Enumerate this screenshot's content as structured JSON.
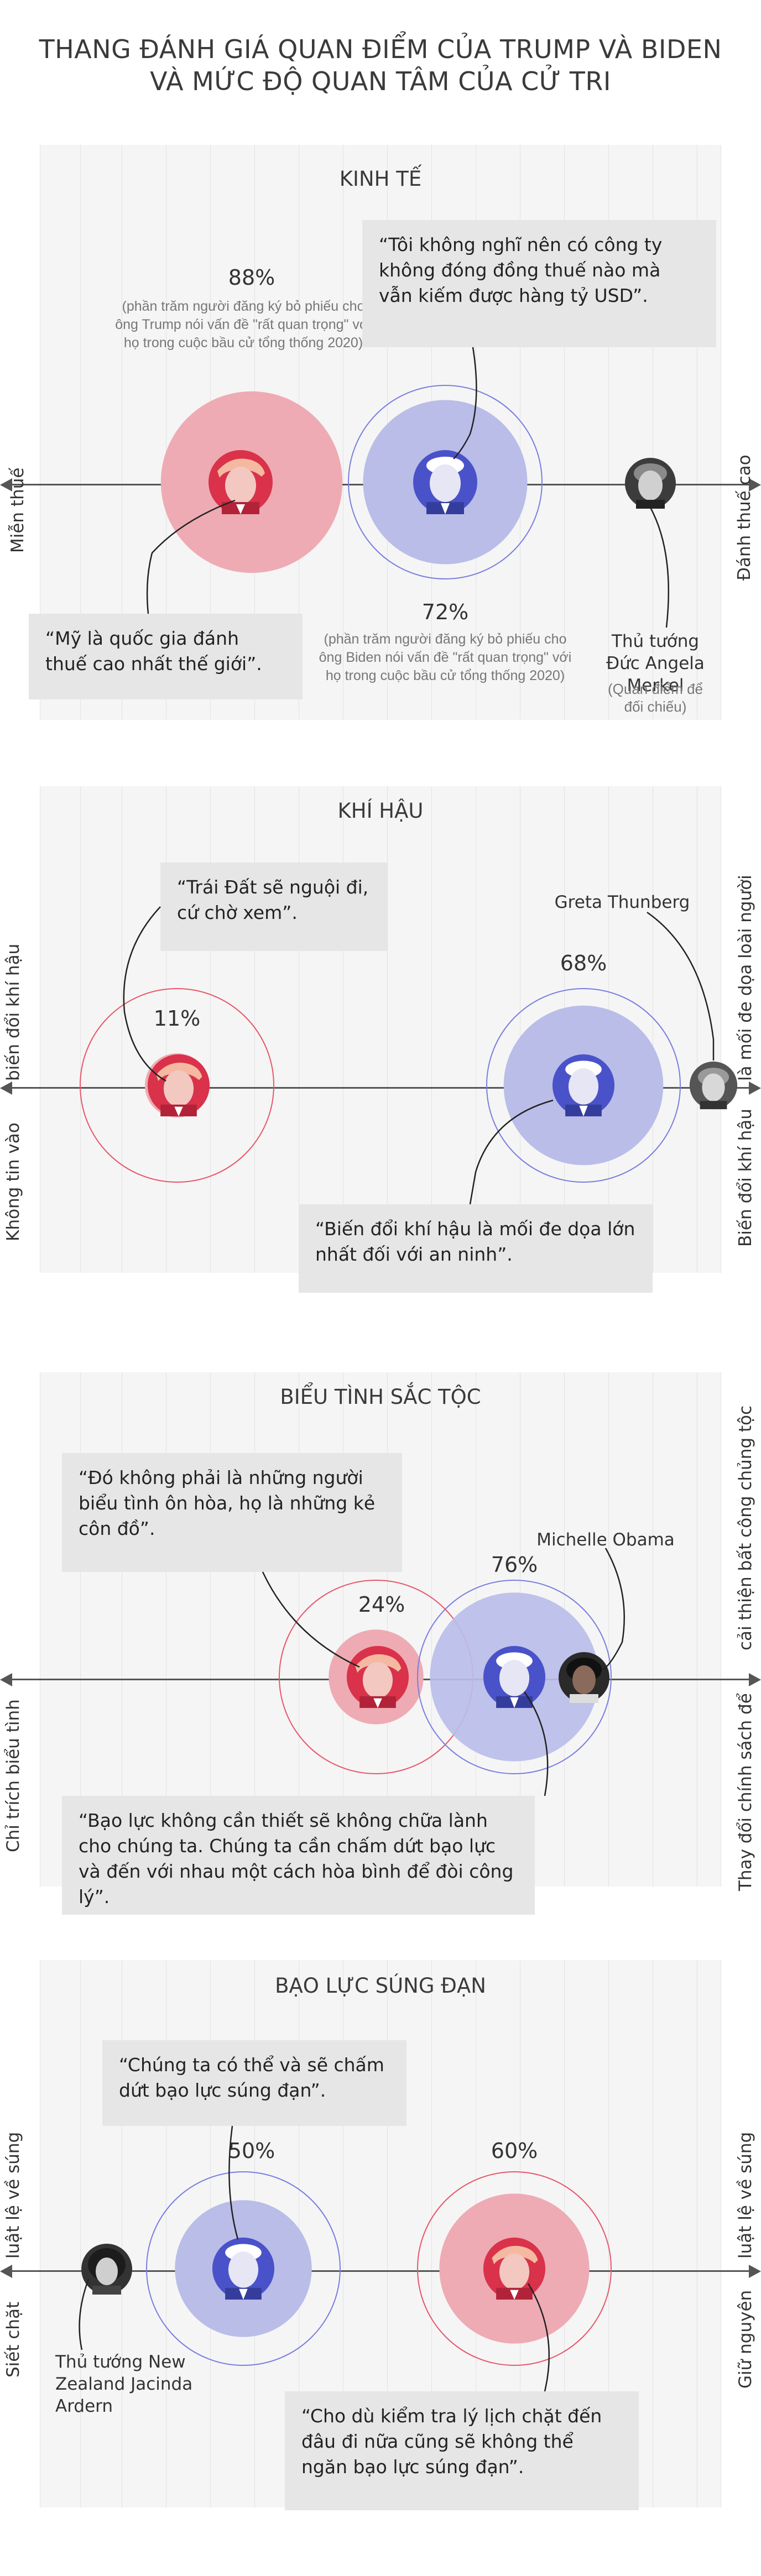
{
  "title": {
    "line1": "THANG ĐÁNH GIÁ QUAN ĐIỂM CỦA TRUMP VÀ BIDEN",
    "line2": "VÀ MỨC ĐỘ QUAN TÂM CỦA CỬ TRI"
  },
  "colors": {
    "trump": "#e8566a",
    "biden": "#7a7ee0",
    "panel": "#f5f5f5",
    "quote_bg": "#e6e6e6"
  },
  "sections": [
    {
      "title": "KINH TẾ",
      "left_axis": "Miễn thuế",
      "right_axis": "Đánh thuế cao",
      "trump_pct": "88%",
      "trump_value": 88,
      "trump_note": "(phần trăm người đăng ký bỏ phiếu cho ông Trump nói vấn đề \"rất quan trọng\" với họ trong cuộc bầu cử tổng thống 2020)",
      "biden_pct": "72%",
      "biden_value": 72,
      "biden_note": "(phần trăm người đăng ký bỏ phiếu cho ông Biden nói vấn đề \"rất quan trọng\" với họ trong cuộc bầu cử tổng thống 2020)",
      "biden_quote": "“Tôi không nghĩ nên có công ty không đóng đồng thuế nào mà vẫn kiếm được hàng tỷ USD”.",
      "trump_quote": "“Mỹ là quốc gia đánh thuế cao nhất thế giới”.",
      "reference_name": "Thủ tướng Đức Angela Merkel",
      "reference_sub": "(Quan điểm để đối chiếu)"
    },
    {
      "title": "KHÍ HẬU",
      "left_axis_1": "biến đổi khí hậu",
      "left_axis_2": "Không tin vào",
      "right_axis_1": "là mối đe dọa loài người",
      "right_axis_2": "Biến đổi khí hậu",
      "trump_pct": "11%",
      "trump_value": 11,
      "biden_pct": "68%",
      "biden_value": 68,
      "trump_quote": "“Trái Đất sẽ nguội đi, cứ chờ xem”.",
      "biden_quote": "“Biến đổi khí hậu là mối đe dọa lớn nhất đối với an ninh”.",
      "reference_name": "Greta Thunberg"
    },
    {
      "title": "BIỂU TÌNH SẮC TỘC",
      "left_axis": "Chỉ trích biểu tình",
      "right_axis_1": "cải thiện bất công chủng tộc",
      "right_axis_2": "Thay đổi chính sách để",
      "trump_pct": "24%",
      "trump_value": 24,
      "biden_pct": "76%",
      "biden_value": 76,
      "trump_quote": "“Đó không phải là những người biểu tình ôn hòa, họ là những kẻ côn đồ”.",
      "biden_quote": "“Bạo lực không cần thiết sẽ không chữa lành cho chúng ta. Chúng ta cần chấm dứt bạo lực và đến với nhau một cách hòa bình để đòi công lý”.",
      "reference_name": "Michelle Obama"
    },
    {
      "title": "BẠO LỰC SÚNG ĐẠN",
      "left_axis_1": "luật lệ về súng",
      "left_axis_2": "Siết chặt",
      "right_axis_1": "luật lệ về súng",
      "right_axis_2": "Giữ nguyên",
      "biden_pct": "50%",
      "biden_value": 50,
      "trump_pct": "60%",
      "trump_value": 60,
      "biden_quote": "“Chúng ta có thể và sẽ chấm dứt bạo lực súng đạn”.",
      "trump_quote": "“Cho dù kiểm tra lý lịch chặt đến đâu đi nữa cũng sẽ không thể ngăn bạo lực súng đạn”.",
      "reference_name": "Thủ tướng New Zealand Jacinda Ardern"
    }
  ]
}
